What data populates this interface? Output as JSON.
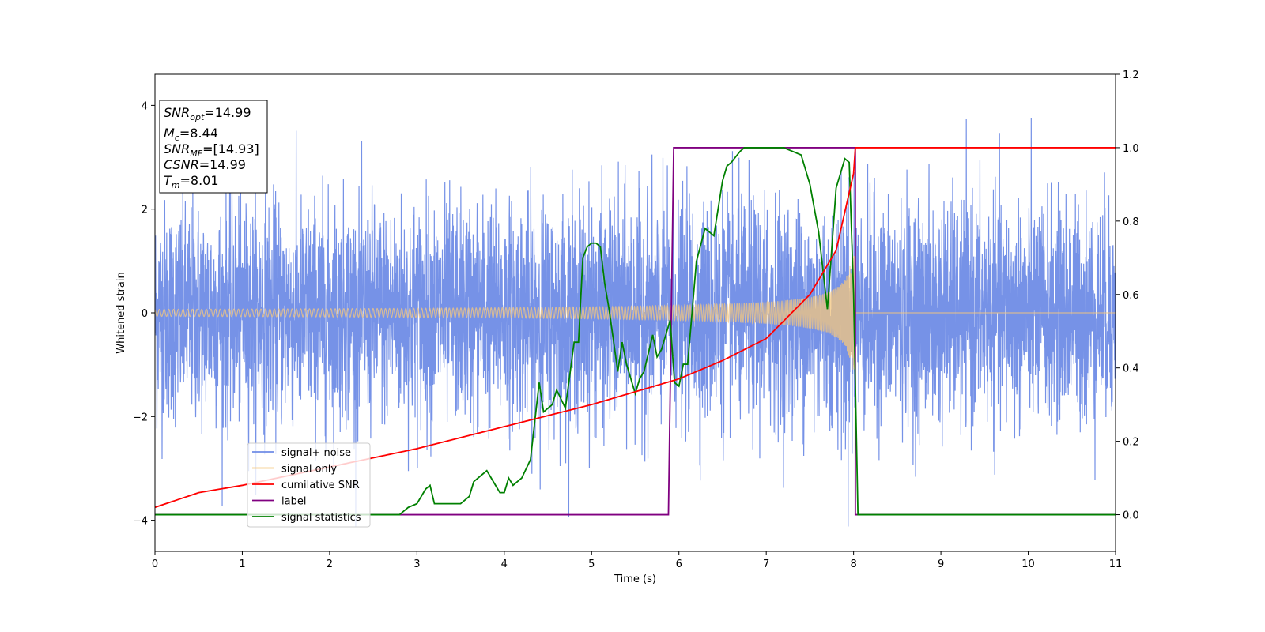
{
  "chart_data": {
    "type": "line",
    "xlabel": "Time (s)",
    "ylabel": "Whitened strain",
    "xlim": [
      0,
      11
    ],
    "ylim_left": [
      -4.6,
      4.6
    ],
    "ylim_right": [
      -0.1,
      1.2
    ],
    "x_ticks": [
      "0",
      "1",
      "2",
      "3",
      "4",
      "5",
      "6",
      "7",
      "8",
      "9",
      "10",
      "11"
    ],
    "x_tick_values": [
      0,
      1,
      2,
      3,
      4,
      5,
      6,
      7,
      8,
      9,
      10,
      11
    ],
    "y_left_ticks": [
      "−4",
      "−2",
      "0",
      "2",
      "4"
    ],
    "y_left_tick_values": [
      -4,
      -2,
      0,
      2,
      4
    ],
    "y_right_ticks": [
      "0.0",
      "0.2",
      "0.4",
      "0.6",
      "0.8",
      "1.0",
      "1.2"
    ],
    "y_right_tick_values": [
      0,
      0.2,
      0.4,
      0.6,
      0.8,
      1.0,
      1.2
    ],
    "grid": false,
    "legend_position": "lower-left",
    "colors": {
      "signal_noise": "#6f8ce6",
      "signal_only": "#f5c77e",
      "cumulative_snr": "#ff0000",
      "label": "#800080",
      "signal_statistics": "#008000"
    },
    "series": [
      {
        "name": "signal+ noise",
        "axis": "left",
        "description_values": {
          "envelope_typical": 2.3,
          "peak_max": 4.18,
          "peak_min": -4.12,
          "x_range": [
            0,
            11
          ]
        }
      },
      {
        "name": "signal only",
        "axis": "left",
        "description_values": {
          "start_amplitude": 0.08,
          "amplitude_at_6": 0.18,
          "amplitude_at_7": 0.35,
          "amplitude_at_8": 1.05,
          "merger_time": 8.01
        }
      },
      {
        "name": "cumilative SNR",
        "axis": "right",
        "x": [
          0,
          0.5,
          1,
          2,
          3,
          4,
          5,
          6,
          6.5,
          7,
          7.5,
          7.8,
          8.0,
          8.02,
          11
        ],
        "y": [
          0.02,
          0.06,
          0.08,
          0.13,
          0.18,
          0.24,
          0.3,
          0.37,
          0.42,
          0.48,
          0.6,
          0.72,
          0.93,
          1.0,
          1.0
        ]
      },
      {
        "name": "label",
        "axis": "right",
        "x": [
          0,
          5.88,
          5.94,
          8.02,
          8.02,
          11
        ],
        "y": [
          0,
          0,
          1.0,
          1.0,
          0,
          0
        ]
      },
      {
        "name": "signal statistics",
        "axis": "right",
        "x": [
          0,
          2.5,
          2.8,
          2.9,
          3.0,
          3.1,
          3.15,
          3.2,
          3.3,
          3.4,
          3.5,
          3.6,
          3.65,
          3.7,
          3.8,
          3.9,
          3.95,
          4.0,
          4.05,
          4.1,
          4.2,
          4.3,
          4.4,
          4.45,
          4.5,
          4.55,
          4.6,
          4.7,
          4.8,
          4.85,
          4.9,
          4.95,
          5.0,
          5.05,
          5.1,
          5.15,
          5.2,
          5.3,
          5.35,
          5.4,
          5.5,
          5.55,
          5.6,
          5.7,
          5.75,
          5.8,
          5.9,
          5.95,
          6.0,
          6.05,
          6.1,
          6.2,
          6.3,
          6.4,
          6.5,
          6.55,
          6.6,
          6.7,
          6.75,
          6.8,
          6.9,
          7.0,
          7.2,
          7.4,
          7.5,
          7.6,
          7.7,
          7.8,
          7.9,
          7.95,
          8.0,
          8.05,
          11
        ],
        "y": [
          0,
          0.0,
          0.0,
          0.02,
          0.03,
          0.07,
          0.08,
          0.03,
          0.03,
          0.03,
          0.03,
          0.05,
          0.09,
          0.1,
          0.12,
          0.08,
          0.06,
          0.06,
          0.1,
          0.08,
          0.1,
          0.15,
          0.36,
          0.28,
          0.29,
          0.3,
          0.34,
          0.29,
          0.47,
          0.47,
          0.7,
          0.73,
          0.74,
          0.74,
          0.73,
          0.63,
          0.56,
          0.39,
          0.47,
          0.41,
          0.33,
          0.37,
          0.39,
          0.49,
          0.43,
          0.45,
          0.53,
          0.36,
          0.35,
          0.41,
          0.41,
          0.69,
          0.78,
          0.76,
          0.91,
          0.95,
          0.96,
          0.99,
          1.0,
          1.0,
          1.0,
          1.0,
          1.0,
          0.98,
          0.9,
          0.77,
          0.56,
          0.89,
          0.97,
          0.96,
          0.6,
          0.0,
          0.0
        ]
      }
    ],
    "info_box": [
      {
        "main": "SNR",
        "sub": "opt",
        "value": "=14.99"
      },
      {
        "main": "M",
        "sub": "c",
        "value": "=8.44"
      },
      {
        "main": "SNR",
        "sub": "MF",
        "value": "=[14.93]"
      },
      {
        "main": "CSNR",
        "sub": "",
        "value": "=14.99"
      },
      {
        "main": "T",
        "sub": "m",
        "value": "=8.01"
      }
    ]
  }
}
